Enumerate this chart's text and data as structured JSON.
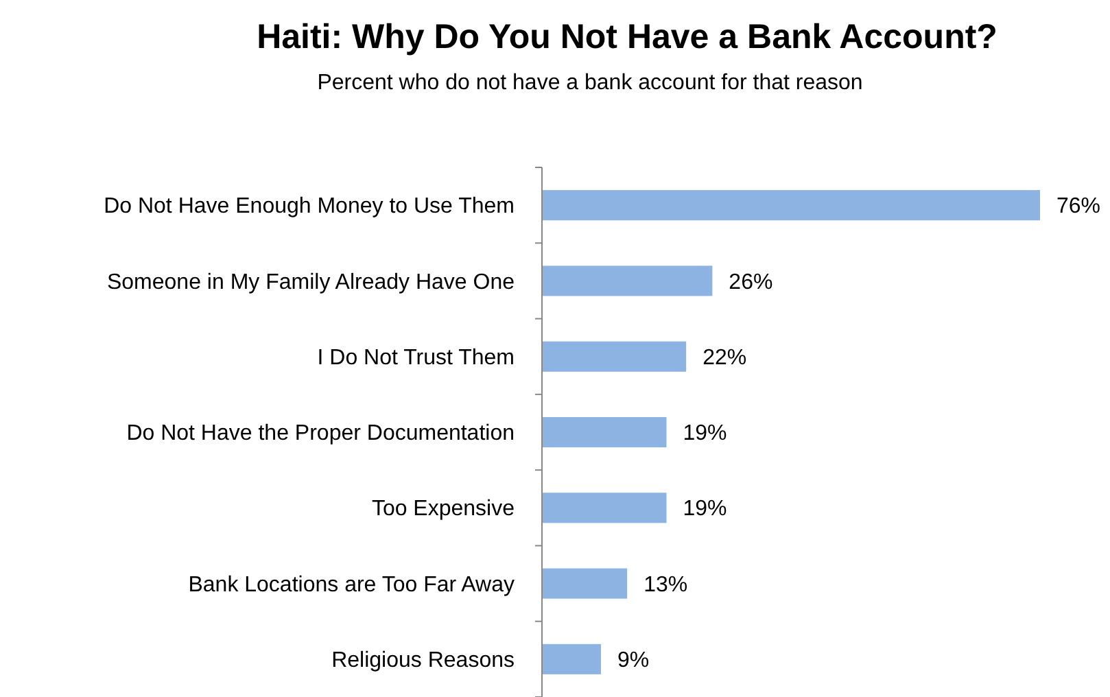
{
  "chart_data": {
    "type": "bar",
    "orientation": "horizontal",
    "title": "Haiti: Why Do You Not Have a Bank Account?",
    "subtitle": "Percent who do not have a bank account for that reason",
    "categories": [
      "Do Not Have Enough Money to Use Them",
      "Someone in My Family Already Have One",
      "I Do Not Trust Them",
      "Do Not Have the Proper Documentation",
      "Too Expensive",
      "Bank Locations are Too Far Away",
      "Religious Reasons"
    ],
    "values": [
      76,
      26,
      22,
      19,
      19,
      13,
      9
    ],
    "value_labels": [
      "76%",
      "26%",
      "22%",
      "19%",
      "19%",
      "13%",
      "9%"
    ],
    "color": "#8db3e2"
  }
}
